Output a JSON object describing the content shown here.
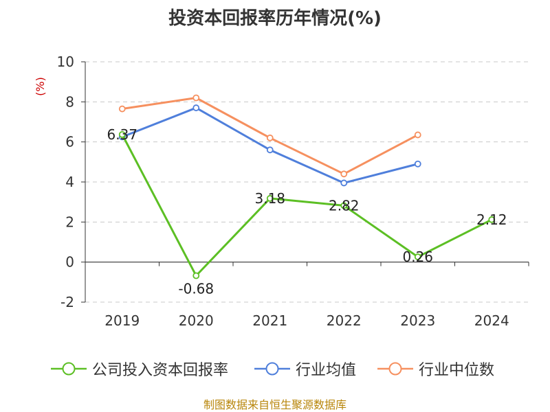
{
  "chart_data": {
    "type": "line",
    "title": "投资本回报率历年情况(%)",
    "ylabel": "(%)",
    "categories": [
      "2019",
      "2020",
      "2021",
      "2022",
      "2023",
      "2024"
    ],
    "ylim": [
      -2,
      10
    ],
    "yticks": [
      -2,
      0,
      2,
      4,
      6,
      8,
      10
    ],
    "grid": true,
    "legend_position": "bottom",
    "series": [
      {
        "name": "公司投入资本回报率",
        "color": "#5cbf24",
        "values": [
          6.37,
          -0.68,
          3.18,
          2.82,
          0.26,
          2.12
        ],
        "labels": [
          "6.37",
          "-0.68",
          "3.18",
          "2.82",
          "0.26",
          "2.12"
        ]
      },
      {
        "name": "行业均值",
        "color": "#4f7fdb",
        "values": [
          6.25,
          7.7,
          5.6,
          3.95,
          4.9,
          null
        ]
      },
      {
        "name": "行业中位数",
        "color": "#f6905f",
        "values": [
          7.65,
          8.2,
          6.2,
          4.4,
          6.35,
          null
        ]
      }
    ]
  },
  "source_note": "制图数据来自恒生聚源数据库"
}
